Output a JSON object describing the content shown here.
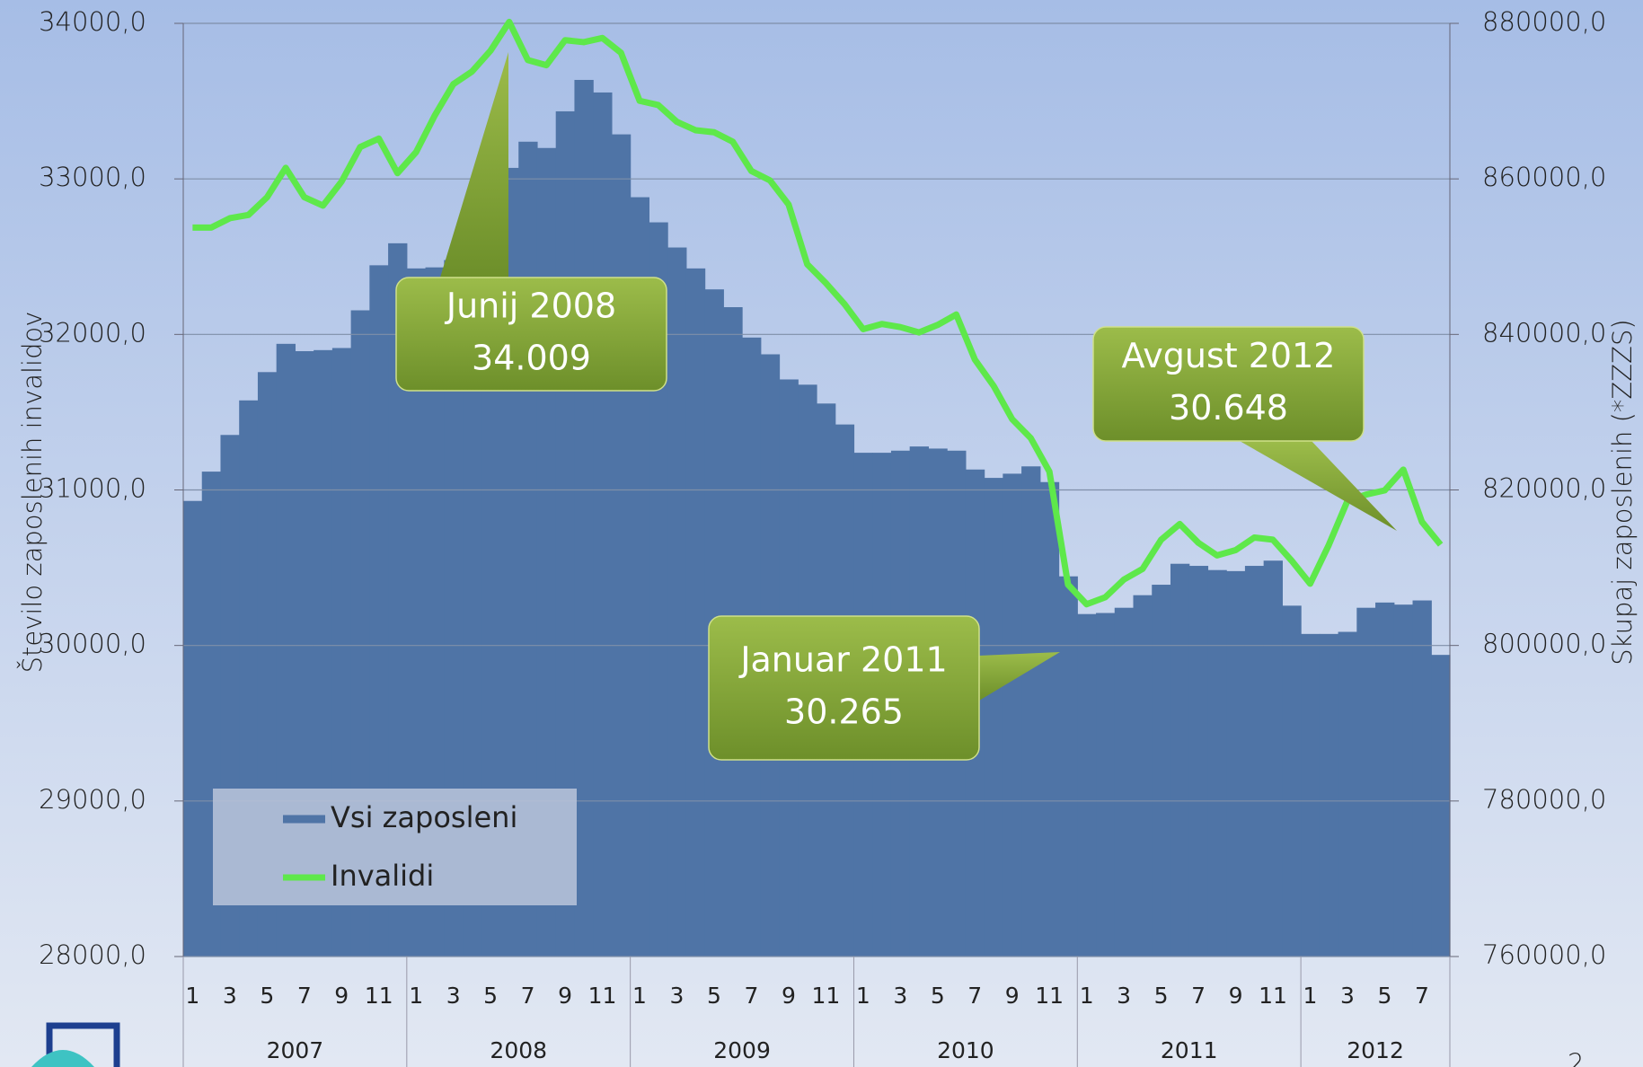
{
  "chart_data": {
    "type": "bar-line",
    "y_label": "Število zaposlenih invalidov",
    "y2_label": "Skupaj zaposlenih (*ZZZS)",
    "categories": [
      "1",
      null,
      "3",
      null,
      "5",
      null,
      "7",
      null,
      "9",
      null,
      "11",
      null,
      "1",
      null,
      "3",
      null,
      "5",
      null,
      "7",
      null,
      "9",
      null,
      "11",
      null,
      "1",
      null,
      "3",
      null,
      "5",
      null,
      "7",
      null,
      "9",
      null,
      "11",
      null,
      "1",
      null,
      "3",
      null,
      "5",
      null,
      "7",
      null,
      "9",
      null,
      "11",
      null,
      "1",
      null,
      "3",
      null,
      "5",
      null,
      "7",
      null,
      "9",
      null,
      "11",
      null,
      "1",
      null,
      "3",
      null,
      "5",
      null,
      "7",
      null
    ],
    "years": [
      "2007",
      "2008",
      "2009",
      "2010",
      "2011",
      "2012"
    ],
    "series": [
      {
        "name": "Vsi zaposleni",
        "color": "#4f74a6",
        "axis": "y2",
        "values": [
          818586,
          822357,
          827071,
          831515,
          835152,
          838788,
          837845,
          837980,
          838249,
          843098,
          848889,
          851717,
          848485,
          848620,
          849562,
          853603,
          856700,
          861414,
          864781,
          863973,
          868687,
          872727,
          871111,
          865724,
          857643,
          854411,
          851178,
          848485,
          845791,
          843502,
          839596,
          837441,
          834209,
          833535,
          831111,
          828418,
          824781,
          824781,
          825051,
          825589,
          825320,
          825051,
          822626,
          821549,
          822088,
          823030,
          821010,
          808889,
          804040,
          804175,
          804848,
          806465,
          807811,
          810505,
          810236,
          809697,
          809562,
          810236,
          810909,
          805118,
          801481,
          801481,
          801751,
          804848,
          805522,
          805253,
          805791,
          798788
        ]
      },
      {
        "name": "Invalidi",
        "color": "#5ee84a",
        "values": [
          32687,
          32687,
          32747,
          32768,
          32882,
          33071,
          32882,
          32828,
          32983,
          33205,
          33259,
          33037,
          33172,
          33407,
          33609,
          33690,
          33825,
          34009,
          33764,
          33731,
          33892,
          33879,
          33906,
          33811,
          33502,
          33475,
          33367,
          33313,
          33300,
          33239,
          33051,
          32990,
          32835,
          32451,
          32330,
          32195,
          32034,
          32067,
          32047,
          32013,
          32061,
          32128,
          31838,
          31670,
          31455,
          31333,
          31118,
          30391,
          30265,
          30310,
          30424,
          30492,
          30680,
          30781,
          30660,
          30579,
          30613,
          30694,
          30680,
          30546,
          30397,
          30646,
          30929,
          30970,
          30997,
          31131,
          30795,
          30648
        ]
      }
    ],
    "ylim": [
      28000,
      34000
    ],
    "yticks": [
      {
        "value": 28000,
        "label": "28000,0"
      },
      {
        "value": 29000,
        "label": "29000,0"
      },
      {
        "value": 30000,
        "label": "30000,0"
      },
      {
        "value": 31000,
        "label": "31000,0"
      },
      {
        "value": 32000,
        "label": "32000,0"
      },
      {
        "value": 33000,
        "label": "33000,0"
      },
      {
        "value": 34000,
        "label": "34000,0"
      }
    ],
    "y2lim": [
      760000,
      880000
    ],
    "y2ticks": [
      {
        "value": 760000,
        "label": "760000,0"
      },
      {
        "value": 780000,
        "label": "780000,0"
      },
      {
        "value": 800000,
        "label": "800000,0"
      },
      {
        "value": 820000,
        "label": "820000,0"
      },
      {
        "value": 840000,
        "label": "840000,0"
      },
      {
        "value": 860000,
        "label": "860000,0"
      },
      {
        "value": 880000,
        "label": "880000,0"
      }
    ],
    "grid": true,
    "legend": "lower left",
    "annotations": [
      {
        "lines": [
          "Junij 2008",
          "34.009"
        ]
      },
      {
        "lines": [
          "Januar 2011",
          "30.265"
        ]
      },
      {
        "lines": [
          "Avgust 2012",
          "30.648"
        ]
      }
    ],
    "page_number": "2"
  }
}
